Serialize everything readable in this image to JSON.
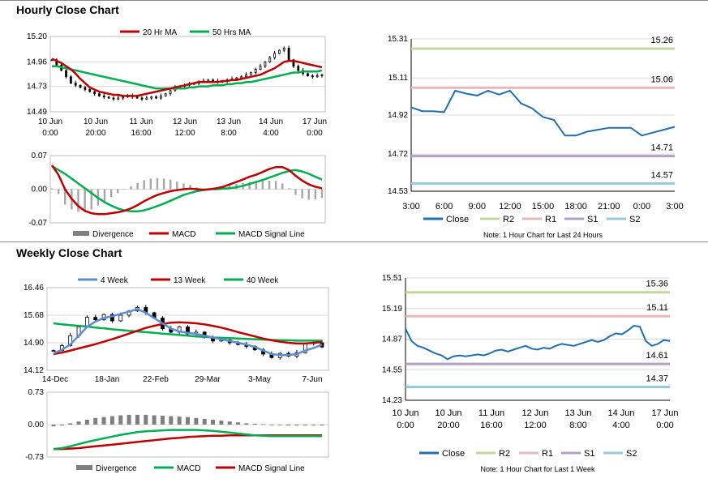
{
  "titles": {
    "hourly": "Hourly Close Chart",
    "weekly": "Weekly Close Chart"
  },
  "colors": {
    "ma20": "#c00000",
    "ma50": "#00b050",
    "wk4": "#5b8dd6",
    "wk13": "#c00000",
    "wk40": "#00b050",
    "divergence": "#a6a6a6",
    "close": "#1f6fb2",
    "r2": "#c4d79b",
    "r1": "#e6b8b7",
    "s1": "#b1a0c7",
    "s2": "#93cddd",
    "grid": "#d9d9d9"
  },
  "chart_data": [
    {
      "id": "hourly-price",
      "type": "candlestick",
      "legend": [
        "20 Hr MA",
        "50 Hrs MA"
      ],
      "yticks": [
        "15.20",
        "14.96",
        "14.73",
        "14.49"
      ],
      "ylim": [
        14.49,
        15.2
      ],
      "xticks": [
        [
          "10 Jun",
          "0:00"
        ],
        [
          "10 Jun",
          "20:00"
        ],
        [
          "11 Jun",
          "16:00"
        ],
        [
          "12 Jun",
          "12:00"
        ],
        [
          "13 Jun",
          "8:00"
        ],
        [
          "14 Jun",
          "4:00"
        ],
        [
          "17 Jun",
          "0:00"
        ]
      ],
      "close": [
        14.98,
        14.93,
        14.88,
        14.82,
        14.76,
        14.74,
        14.72,
        14.7,
        14.68,
        14.66,
        14.64,
        14.63,
        14.62,
        14.61,
        14.62,
        14.63,
        14.64,
        14.63,
        14.62,
        14.61,
        14.62,
        14.63,
        14.62,
        14.64,
        14.66,
        14.69,
        14.72,
        14.73,
        14.74,
        14.75,
        14.76,
        14.77,
        14.78,
        14.79,
        14.78,
        14.77,
        14.78,
        14.79,
        14.8,
        14.81,
        14.82,
        14.84,
        14.86,
        14.89,
        14.92,
        14.96,
        15.0,
        15.04,
        15.07,
        15.09,
        14.98,
        14.92,
        14.88,
        14.85,
        14.83,
        14.82,
        14.83,
        14.84
      ],
      "ma20": [
        14.99,
        14.97,
        14.95,
        14.92,
        14.89,
        14.85,
        14.8,
        14.76,
        14.72,
        14.7,
        14.68,
        14.67,
        14.66,
        14.65,
        14.65,
        14.64,
        14.64,
        14.64,
        14.64,
        14.65,
        14.66,
        14.67,
        14.68,
        14.69,
        14.7,
        14.71,
        14.72,
        14.73,
        14.74,
        14.75,
        14.76,
        14.77,
        14.77,
        14.77,
        14.77,
        14.77,
        14.78,
        14.78,
        14.79,
        14.79,
        14.8,
        14.81,
        14.82,
        14.83,
        14.84,
        14.86,
        14.88,
        14.9,
        14.93,
        14.96,
        14.97,
        14.97,
        14.96,
        14.95,
        14.94,
        14.93,
        14.92,
        14.91
      ],
      "ma50": [
        14.92,
        14.92,
        14.91,
        14.9,
        14.89,
        14.88,
        14.87,
        14.86,
        14.85,
        14.84,
        14.83,
        14.82,
        14.81,
        14.8,
        14.79,
        14.78,
        14.77,
        14.76,
        14.75,
        14.74,
        14.73,
        14.72,
        14.71,
        14.71,
        14.71,
        14.71,
        14.71,
        14.71,
        14.71,
        14.72,
        14.72,
        14.73,
        14.73,
        14.73,
        14.74,
        14.74,
        14.74,
        14.75,
        14.75,
        14.76,
        14.76,
        14.77,
        14.77,
        14.78,
        14.79,
        14.8,
        14.81,
        14.82,
        14.83,
        14.84,
        14.85,
        14.86,
        14.86,
        14.87,
        14.87,
        14.87,
        14.87,
        14.88
      ]
    },
    {
      "id": "hourly-macd",
      "type": "line+bar",
      "legend": [
        "Divergence",
        "MACD",
        "MACD Signal Line"
      ],
      "yticks": [
        "0.07",
        "0.00",
        "-0.07"
      ],
      "ylim": [
        -0.07,
        0.07
      ],
      "macd": [
        0.05,
        0.03,
        0.0,
        -0.02,
        -0.035,
        -0.045,
        -0.05,
        -0.052,
        -0.052,
        -0.05,
        -0.048,
        -0.045,
        -0.04,
        -0.033,
        -0.025,
        -0.018,
        -0.012,
        -0.008,
        -0.004,
        -0.002,
        0.0,
        0.001,
        0.0,
        -0.001,
        0.0,
        0.002,
        0.005,
        0.01,
        0.015,
        0.02,
        0.026,
        0.03,
        0.036,
        0.042,
        0.046,
        0.046,
        0.04,
        0.028,
        0.018,
        0.01,
        0.005,
        0.002
      ],
      "signal": [
        0.048,
        0.04,
        0.032,
        0.022,
        0.012,
        0.002,
        -0.008,
        -0.018,
        -0.027,
        -0.034,
        -0.04,
        -0.044,
        -0.046,
        -0.046,
        -0.044,
        -0.04,
        -0.035,
        -0.03,
        -0.024,
        -0.018,
        -0.012,
        -0.008,
        -0.004,
        -0.002,
        0.0,
        0.0,
        0.001,
        0.002,
        0.004,
        0.007,
        0.011,
        0.015,
        0.019,
        0.024,
        0.029,
        0.034,
        0.038,
        0.04,
        0.037,
        0.032,
        0.026,
        0.02
      ],
      "divergence": [
        0.002,
        -0.01,
        -0.032,
        -0.042,
        -0.047,
        -0.047,
        -0.042,
        -0.034,
        -0.025,
        -0.016,
        -0.008,
        -0.001,
        0.006,
        0.013,
        0.019,
        0.022,
        0.023,
        0.022,
        0.02,
        0.016,
        0.012,
        0.009,
        0.004,
        0.001,
        0.0,
        0.002,
        0.004,
        0.008,
        0.011,
        0.013,
        0.015,
        0.015,
        0.017,
        0.018,
        0.017,
        0.012,
        0.002,
        -0.012,
        -0.019,
        -0.022,
        -0.021,
        -0.018
      ]
    },
    {
      "id": "hourly-close",
      "type": "line",
      "yticks": [
        "15.31",
        "15.11",
        "14.92",
        "14.72",
        "14.53"
      ],
      "ylim": [
        14.53,
        15.31
      ],
      "xticks": [
        "3:00",
        "6:00",
        "9:00",
        "12:00",
        "15:00",
        "18:00",
        "21:00",
        "0:00",
        "3:00"
      ],
      "close": [
        14.96,
        14.94,
        14.94,
        14.935,
        15.045,
        15.03,
        15.02,
        15.045,
        15.025,
        15.045,
        14.98,
        14.955,
        14.91,
        14.895,
        14.815,
        14.815,
        14.835,
        14.845,
        14.855,
        14.855,
        14.855,
        14.815,
        14.83,
        14.845,
        14.86
      ],
      "levels": {
        "R2": 15.26,
        "R1": 15.06,
        "S1": 14.71,
        "S2": 14.57
      },
      "level_labels": {
        "R2": "15.26",
        "R1": "15.06",
        "S1": "14.71",
        "S2": "14.57"
      },
      "legend": [
        "Close",
        "R2",
        "R1",
        "S1",
        "S2"
      ],
      "note": "Note: 1 Hour Chart for Last 24 Hours"
    },
    {
      "id": "weekly-price",
      "type": "candlestick",
      "legend": [
        "4 Week",
        "13 Week",
        "40 Week"
      ],
      "yticks": [
        "16.46",
        "15.68",
        "14.90",
        "14.12"
      ],
      "ylim": [
        14.12,
        16.46
      ],
      "xticks": [
        "14-Dec",
        "18-Jan",
        "22-Feb",
        "29-Mar",
        "3-May",
        "7-Jun"
      ],
      "close": [
        14.68,
        14.82,
        15.1,
        15.35,
        15.62,
        15.55,
        15.7,
        15.52,
        15.68,
        15.8,
        15.9,
        15.75,
        15.6,
        15.3,
        15.2,
        15.35,
        15.15,
        15.2,
        15.05,
        14.95,
        14.98,
        14.9,
        14.85,
        14.8,
        14.7,
        14.58,
        14.48,
        14.6,
        14.52,
        14.62,
        14.88,
        14.9,
        14.78
      ],
      "wk4": [
        14.6,
        14.7,
        14.85,
        15.1,
        15.35,
        15.5,
        15.6,
        15.65,
        15.72,
        15.78,
        15.85,
        15.75,
        15.6,
        15.45,
        15.3,
        15.22,
        15.18,
        15.15,
        15.1,
        15.05,
        15.0,
        14.95,
        14.9,
        14.85,
        14.78,
        14.68,
        14.58,
        14.55,
        14.55,
        14.58,
        14.68,
        14.75,
        14.85
      ],
      "wk13": [
        14.58,
        14.62,
        14.68,
        14.74,
        14.8,
        14.86,
        14.93,
        15.0,
        15.08,
        15.16,
        15.24,
        15.32,
        15.38,
        15.43,
        15.47,
        15.48,
        15.47,
        15.45,
        15.42,
        15.38,
        15.33,
        15.27,
        15.2,
        15.14,
        15.08,
        15.02,
        14.97,
        14.93,
        14.9,
        14.88,
        14.88,
        14.9,
        14.92
      ],
      "wk40": [
        15.45,
        15.42,
        15.4,
        15.38,
        15.36,
        15.33,
        15.31,
        15.28,
        15.26,
        15.24,
        15.22,
        15.2,
        15.18,
        15.16,
        15.14,
        15.12,
        15.1,
        15.08,
        15.07,
        15.05,
        15.04,
        15.03,
        15.02,
        15.01,
        15.0,
        14.99,
        14.98,
        14.97,
        14.97,
        14.96,
        14.96,
        14.96,
        14.96
      ]
    },
    {
      "id": "weekly-macd",
      "type": "line+bar",
      "legend": [
        "Divergence",
        "MACD",
        "MACD Signal Line"
      ],
      "yticks": [
        "0.73",
        "0.00",
        "-0.73"
      ],
      "ylim": [
        -0.73,
        0.73
      ],
      "macd": [
        -0.55,
        -0.53,
        -0.49,
        -0.44,
        -0.39,
        -0.35,
        -0.31,
        -0.27,
        -0.23,
        -0.2,
        -0.17,
        -0.15,
        -0.14,
        -0.13,
        -0.12,
        -0.12,
        -0.12,
        -0.12,
        -0.13,
        -0.14,
        -0.16,
        -0.18,
        -0.2,
        -0.22,
        -0.24,
        -0.25,
        -0.26,
        -0.26,
        -0.26,
        -0.26,
        -0.26,
        -0.26,
        -0.26
      ],
      "signal": [
        -0.55,
        -0.55,
        -0.54,
        -0.53,
        -0.51,
        -0.49,
        -0.47,
        -0.45,
        -0.43,
        -0.41,
        -0.39,
        -0.37,
        -0.35,
        -0.33,
        -0.31,
        -0.3,
        -0.28,
        -0.27,
        -0.26,
        -0.25,
        -0.25,
        -0.24,
        -0.24,
        -0.24,
        -0.24,
        -0.24,
        -0.24,
        -0.24,
        -0.24,
        -0.24,
        -0.24,
        -0.24,
        -0.24
      ],
      "divergence": [
        -0.04,
        -0.02,
        0.03,
        0.07,
        0.11,
        0.15,
        0.17,
        0.19,
        0.21,
        0.22,
        0.22,
        0.22,
        0.21,
        0.2,
        0.19,
        0.18,
        0.17,
        0.15,
        0.13,
        0.11,
        0.09,
        0.07,
        0.05,
        0.03,
        0.02,
        0.01,
        0.0,
        -0.01,
        -0.02,
        -0.02,
        -0.02,
        -0.02,
        -0.02
      ]
    },
    {
      "id": "weekly-close",
      "type": "line",
      "yticks": [
        "15.51",
        "15.19",
        "14.87",
        "14.55",
        "14.23"
      ],
      "ylim": [
        14.23,
        15.51
      ],
      "xticks": [
        [
          "10 Jun",
          "0:00"
        ],
        [
          "10 Jun",
          "20:00"
        ],
        [
          "11 Jun",
          "16:00"
        ],
        [
          "12 Jun",
          "12:00"
        ],
        [
          "13 Jun",
          "8:00"
        ],
        [
          "14 Jun",
          "4:00"
        ],
        [
          "17 Jun",
          "0:00"
        ]
      ],
      "close": [
        14.98,
        14.85,
        14.8,
        14.78,
        14.75,
        14.72,
        14.7,
        14.66,
        14.69,
        14.7,
        14.69,
        14.7,
        14.71,
        14.7,
        14.72,
        14.75,
        14.76,
        14.74,
        14.76,
        14.78,
        14.8,
        14.77,
        14.76,
        14.78,
        14.77,
        14.8,
        14.82,
        14.81,
        14.8,
        14.82,
        14.84,
        14.86,
        14.84,
        14.86,
        14.9,
        14.93,
        14.92,
        14.96,
        15.01,
        15.0,
        14.85,
        14.8,
        14.82,
        14.86,
        14.85
      ],
      "levels": {
        "R2": 15.36,
        "R1": 15.11,
        "S1": 14.61,
        "S2": 14.37
      },
      "level_labels": {
        "R2": "15.36",
        "R1": "15.11",
        "S1": "14.61",
        "S2": "14.37"
      },
      "legend": [
        "Close",
        "R2",
        "R1",
        "S1",
        "S2"
      ],
      "note": "Note: 1 Hour Chart for Last 1 Week"
    }
  ]
}
